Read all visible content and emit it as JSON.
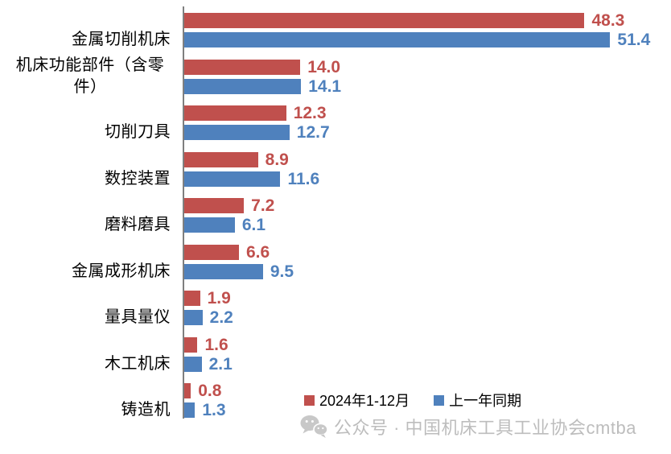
{
  "chart_data": {
    "type": "bar",
    "orientation": "horizontal",
    "categories": [
      "金属切削机床",
      "机床功能部件（含零件）",
      "切削刀具",
      "数控装置",
      "磨料磨具",
      "金属成形机床",
      "量具量仪",
      "木工机床",
      "铸造机"
    ],
    "series": [
      {
        "name": "2024年1-12月",
        "color": "#C0504D",
        "values": [
          48.3,
          14.0,
          12.3,
          8.9,
          7.2,
          6.6,
          1.9,
          1.6,
          0.8
        ]
      },
      {
        "name": "上一年同期",
        "color": "#4F81BD",
        "values": [
          51.4,
          14.1,
          12.7,
          11.6,
          6.1,
          9.5,
          2.2,
          2.1,
          1.3
        ]
      }
    ],
    "value_labels": true,
    "value_decimals": 1,
    "xlim": [
      0,
      55
    ],
    "grid": false,
    "legend_position": "inside-bottom-right",
    "axis_color": "#7F7F7F",
    "label_color": "#000000"
  },
  "footer": {
    "icon": "wechat-icon",
    "text": "公众号 · 中国机床工具工业协会cmtba",
    "color": "#BDBDBD",
    "icon_color": "#C8C8C8"
  }
}
